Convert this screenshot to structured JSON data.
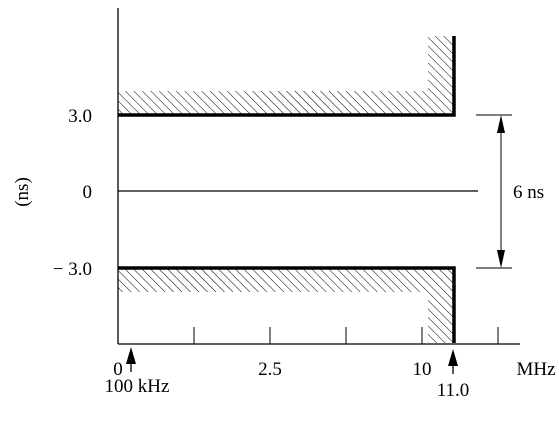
{
  "diagram": {
    "y_axis_label": "(ns)",
    "y_ticks": {
      "upper": "3.0",
      "zero": "0",
      "lower": "− 3.0"
    },
    "x_ticks": {
      "origin": "0",
      "mid": "2.5",
      "ten": "10"
    },
    "x_unit": "MHz",
    "low_freq_marker": "100 kHz",
    "high_freq_marker": "11.0",
    "window_width": "6 ns"
  }
}
